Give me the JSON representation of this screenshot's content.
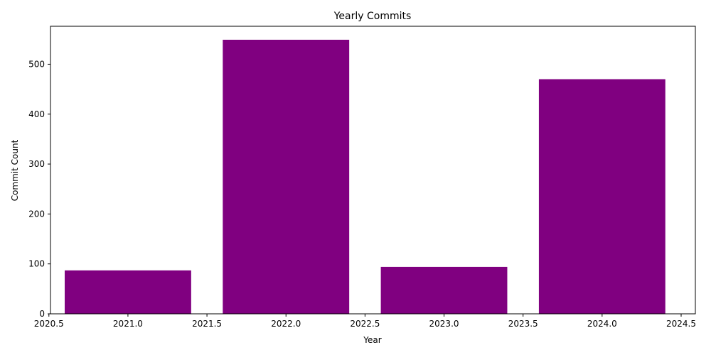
{
  "chart_data": {
    "type": "bar",
    "title": "Yearly Commits",
    "xlabel": "Year",
    "ylabel": "Commit Count",
    "x": [
      2021,
      2022,
      2023,
      2024
    ],
    "values": [
      87,
      549,
      94,
      470
    ],
    "bar_width": 0.8,
    "bar_color": "#800080",
    "xlim": [
      2020.51,
      2024.59
    ],
    "ylim": [
      0,
      576
    ],
    "xticks": [
      2020.5,
      2021.0,
      2021.5,
      2022.0,
      2022.5,
      2023.0,
      2023.5,
      2024.0,
      2024.5
    ],
    "xtick_labels": [
      "2020.5",
      "2021.0",
      "2021.5",
      "2022.0",
      "2022.5",
      "2023.0",
      "2023.5",
      "2024.0",
      "2024.5"
    ],
    "yticks": [
      0,
      100,
      200,
      300,
      400,
      500
    ],
    "ytick_labels": [
      "0",
      "100",
      "200",
      "300",
      "400",
      "500"
    ],
    "grid": false,
    "legend": "none"
  }
}
